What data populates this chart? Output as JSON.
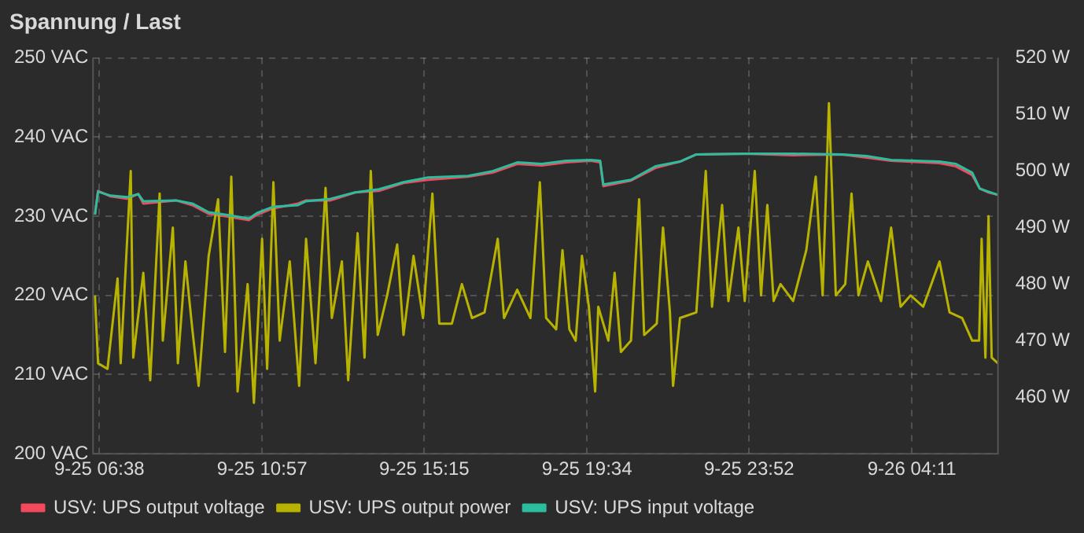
{
  "chart_data": {
    "type": "line",
    "title": "Spannung / Last",
    "legend": "bottom left",
    "grid": true,
    "marker": "none",
    "line_style": "solid",
    "xlim": [
      "--09-25T06:28",
      "--09-26T06:28"
    ],
    "xticks": [
      {
        "value": "--09-25T06:38",
        "label": "9-25 06:38"
      },
      {
        "value": "--09-25T10:57",
        "label": "9-25 10:57"
      },
      {
        "value": "--09-25T15:15",
        "label": "9-25 15:15"
      },
      {
        "value": "--09-25T19:34",
        "label": "9-25 19:34"
      },
      {
        "value": "--09-25T23:52",
        "label": "9-25 23:52"
      },
      {
        "value": "--09-26T04:11",
        "label": "9-26 04:11"
      }
    ],
    "ylim": [
      200,
      250
    ],
    "yticks": [
      {
        "value": 200,
        "label": "200 VAC"
      },
      {
        "value": 210,
        "label": "210 VAC"
      },
      {
        "value": 220,
        "label": "220 VAC"
      },
      {
        "value": 230,
        "label": "230 VAC"
      },
      {
        "value": 240,
        "label": "240 VAC"
      },
      {
        "value": 250,
        "label": "250 VAC"
      }
    ],
    "y2lim": [
      450,
      520
    ],
    "y2ticks": [
      {
        "value": 460,
        "label": "460 W"
      },
      {
        "value": 470,
        "label": "470 W"
      },
      {
        "value": 480,
        "label": "480 W"
      },
      {
        "value": 490,
        "label": "490 W"
      },
      {
        "value": 500,
        "label": "500 W"
      },
      {
        "value": 510,
        "label": "510 W"
      },
      {
        "value": 520,
        "label": "520 W"
      }
    ],
    "series": [
      {
        "name": "USV: UPS output voltage",
        "color": "#f2495c",
        "x": [
          "--09-25T06:31",
          "--09-25T06:36",
          "--09-25T06:56",
          "--09-25T07:22",
          "--09-25T07:40",
          "--09-25T07:48",
          "--09-25T08:40",
          "--09-25T09:06",
          "--09-25T09:32",
          "--09-25T09:58",
          "--09-25T10:36",
          "--09-25T10:49",
          "--09-25T11:15",
          "--09-25T11:54",
          "--09-25T12:07",
          "--09-25T12:46",
          "--09-25T13:25",
          "--09-25T14:03",
          "--09-25T14:42",
          "--09-25T15:21",
          "--09-25T16:25",
          "--09-25T17:04",
          "--09-25T17:43",
          "--09-25T18:22",
          "--09-25T19:01",
          "--09-25T19:40",
          "--09-25T19:55",
          "--09-25T20:00",
          "--09-25T20:44",
          "--09-25T21:23",
          "--09-25T22:02",
          "--09-25T22:28",
          "--09-25T23:45",
          "--09-26T01:02",
          "--09-26T02:20",
          "--09-26T02:59",
          "--09-26T03:38",
          "--09-26T04:55",
          "--09-26T05:21",
          "--09-26T05:47",
          "--09-26T05:59",
          "--09-26T06:13",
          "--09-26T06:28"
        ],
        "values": [
          230.2,
          233.2,
          232.5,
          232.2,
          232.8,
          231.6,
          232.0,
          231.4,
          230.3,
          230.0,
          229.5,
          230.2,
          231.0,
          231.6,
          232.0,
          232.0,
          233.0,
          233.2,
          234.2,
          234.6,
          235.0,
          235.5,
          236.6,
          236.4,
          236.8,
          237.0,
          236.8,
          233.8,
          234.5,
          236.1,
          236.9,
          237.8,
          237.9,
          237.7,
          237.8,
          237.4,
          237.0,
          236.7,
          236.3,
          235.2,
          233.5,
          233.0,
          232.7
        ]
      },
      {
        "name": "USV: UPS output power",
        "color": "#b8b300",
        "axis": "y2",
        "x": [
          "--09-25T06:31",
          "--09-25T06:36",
          "--09-25T06:51",
          "--09-25T07:07",
          "--09-25T07:12",
          "--09-25T07:28",
          "--09-25T07:32",
          "--09-25T07:48",
          "--09-25T07:59",
          "--09-25T08:14",
          "--09-25T08:19",
          "--09-25T08:35",
          "--09-25T08:43",
          "--09-25T08:55",
          "--09-25T09:06",
          "--09-25T09:16",
          "--09-25T09:32",
          "--09-25T09:47",
          "--09-25T09:58",
          "--09-25T10:08",
          "--09-25T10:18",
          "--09-25T10:34",
          "--09-25T10:44",
          "--09-25T10:57",
          "--09-25T11:05",
          "--09-25T11:15",
          "--09-25T11:25",
          "--09-25T11:41",
          "--09-25T11:56",
          "--09-25T12:07",
          "--09-25T12:22",
          "--09-25T12:38",
          "--09-25T12:48",
          "--09-25T13:04",
          "--09-25T13:14",
          "--09-25T13:29",
          "--09-25T13:40",
          "--09-25T13:50",
          "--09-25T14:01",
          "--09-25T14:16",
          "--09-25T14:32",
          "--09-25T14:42",
          "--09-25T14:58",
          "--09-25T15:13",
          "--09-25T15:28",
          "--09-25T15:39",
          "--09-25T15:59",
          "--09-25T16:15",
          "--09-25T16:31",
          "--09-25T16:51",
          "--09-25T17:12",
          "--09-25T17:22",
          "--09-25T17:43",
          "--09-25T18:04",
          "--09-25T18:19",
          "--09-25T18:29",
          "--09-25T18:45",
          "--09-25T18:55",
          "--09-25T19:06",
          "--09-25T19:16",
          "--09-25T19:26",
          "--09-25T19:37",
          "--09-25T19:47",
          "--09-25T19:52",
          "--09-25T20:08",
          "--09-25T20:18",
          "--09-25T20:28",
          "--09-25T20:44",
          "--09-25T20:57",
          "--09-25T21:05",
          "--09-25T21:25",
          "--09-25T21:35",
          "--09-25T21:46",
          "--09-25T21:51",
          "--09-25T22:02",
          "--09-25T22:28",
          "--09-25T22:43",
          "--09-25T22:53",
          "--09-25T23:09",
          "--09-25T23:19",
          "--09-25T23:35",
          "--09-25T23:45",
          "--09-26T00:01",
          "--09-26T00:11",
          "--09-26T00:21",
          "--09-26T00:31",
          "--09-26T00:42",
          "--09-26T01:02",
          "--09-26T01:23",
          "--09-26T01:38",
          "--09-26T01:49",
          "--09-26T01:59",
          "--09-26T02:10",
          "--09-26T02:25",
          "--09-26T02:35",
          "--09-26T02:46",
          "--09-26T03:01",
          "--09-26T03:22",
          "--09-26T03:38",
          "--09-26T03:53",
          "--09-26T04:09",
          "--09-26T04:29",
          "--09-26T04:55",
          "--09-26T05:11",
          "--09-26T05:31",
          "--09-26T05:47",
          "--09-26T05:58",
          "--09-26T06:02",
          "--09-26T06:08",
          "--09-26T06:13",
          "--09-26T06:18",
          "--09-26T06:28"
        ],
        "values": [
          478,
          466,
          465,
          481,
          466,
          500,
          467,
          482,
          463,
          496,
          470,
          490,
          466,
          484,
          472,
          462,
          485,
          495,
          468,
          499,
          461,
          480,
          459,
          488,
          465,
          498,
          470,
          484,
          462,
          488,
          466,
          497,
          474,
          484,
          463,
          489,
          467,
          500,
          471,
          478,
          487,
          471,
          485,
          474,
          496,
          473,
          473,
          480,
          474,
          475,
          488,
          474,
          479,
          474,
          498,
          474,
          472,
          486,
          472,
          470,
          485,
          476,
          461,
          476,
          470,
          482,
          468,
          470,
          495,
          471,
          473,
          490,
          475,
          462,
          474,
          475,
          500,
          476,
          494,
          477,
          490,
          477,
          500,
          478,
          494,
          477,
          480,
          477,
          486,
          499,
          478,
          512,
          478,
          480,
          496,
          478,
          484,
          477,
          490,
          476,
          478,
          476,
          484,
          475,
          474,
          470,
          470,
          488,
          467,
          492,
          467,
          466
        ]
      },
      {
        "name": "USV: UPS input voltage",
        "color": "#2bbd9e",
        "x": [
          "--09-25T06:31",
          "--09-25T06:36",
          "--09-25T06:56",
          "--09-25T07:22",
          "--09-25T07:40",
          "--09-25T07:48",
          "--09-25T08:40",
          "--09-25T09:06",
          "--09-25T09:32",
          "--09-25T09:58",
          "--09-25T10:36",
          "--09-25T10:49",
          "--09-25T11:15",
          "--09-25T11:54",
          "--09-25T12:07",
          "--09-25T12:46",
          "--09-25T13:25",
          "--09-25T14:03",
          "--09-25T14:42",
          "--09-25T15:21",
          "--09-25T16:25",
          "--09-25T17:04",
          "--09-25T17:43",
          "--09-25T18:22",
          "--09-25T19:01",
          "--09-25T19:40",
          "--09-25T19:55",
          "--09-25T20:00",
          "--09-25T20:44",
          "--09-25T21:23",
          "--09-25T22:02",
          "--09-25T22:28",
          "--09-25T23:45",
          "--09-26T01:02",
          "--09-26T02:20",
          "--09-26T02:59",
          "--09-26T03:38",
          "--09-26T04:55",
          "--09-26T05:21",
          "--09-26T05:47",
          "--09-26T05:59",
          "--09-26T06:13",
          "--09-26T06:28"
        ],
        "values": [
          230.2,
          233.1,
          232.6,
          232.4,
          232.8,
          231.9,
          232.0,
          231.6,
          230.5,
          230.2,
          229.7,
          230.4,
          231.2,
          231.4,
          231.9,
          232.2,
          233.0,
          233.4,
          234.3,
          234.9,
          235.1,
          235.7,
          236.8,
          236.6,
          237.0,
          237.1,
          237.0,
          234.0,
          234.6,
          236.3,
          236.9,
          237.8,
          237.9,
          237.9,
          237.8,
          237.6,
          237.1,
          236.9,
          236.6,
          235.5,
          233.5,
          233.1,
          232.7
        ]
      }
    ]
  }
}
